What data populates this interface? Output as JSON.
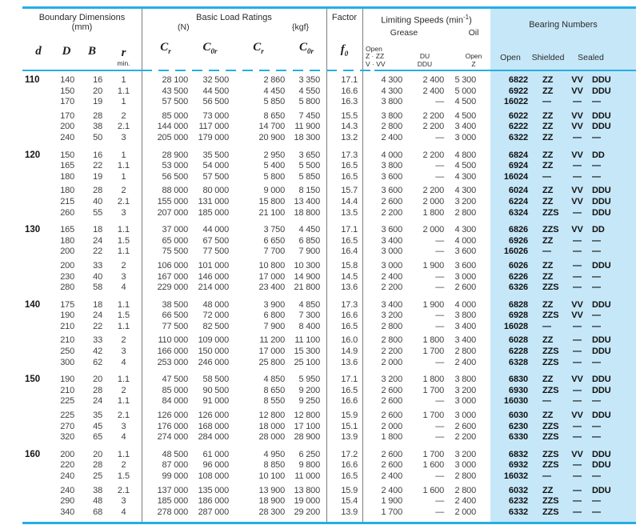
{
  "header": {
    "boundary": {
      "title": "Boundary Dimensions",
      "unit": "(mm)",
      "d": "d",
      "D": "D",
      "B": "B",
      "r": "r",
      "r_sub": "min."
    },
    "load": {
      "title": "Basic Load Ratings",
      "n": "(N)",
      "kgf": "{kgf}",
      "c": "C",
      "sub_r": "r",
      "sub_0r": "0r"
    },
    "factor": {
      "title": "Factor",
      "f": "f",
      "f_sub": "0"
    },
    "speeds": {
      "title_pre": "Limiting Speeds (min",
      "title_sup": "-1",
      "title_post": ")",
      "grease": "Grease",
      "oil": "Oil",
      "grease_col1": [
        "Open",
        "Z · ZZ",
        "V · VV"
      ],
      "grease_col2": [
        "DU",
        "DDU"
      ],
      "oil_col": [
        "Open",
        "Z"
      ]
    },
    "bearing": {
      "title": "Bearing Numbers",
      "open": "Open",
      "shielded": "Shielded",
      "sealed": "Sealed"
    }
  },
  "colors": {
    "accent": "#25aee4",
    "panel": "#c6e7f8"
  },
  "groups": [
    {
      "d": "110",
      "blocks": [
        [
          {
            "D": "140",
            "B": "16",
            "r": "1",
            "crN": "28 100",
            "c0rN": "32 500",
            "crK": "2 860",
            "c0rK": "3 350",
            "f0": "17.1",
            "gro": "4 300",
            "du": "2 400",
            "oil": "5 300",
            "no": "6822",
            "sh": "ZZ",
            "vv": "VV",
            "sl": "DDU"
          },
          {
            "D": "150",
            "B": "20",
            "r": "1.1",
            "crN": "43 500",
            "c0rN": "44 500",
            "crK": "4 450",
            "c0rK": "4 550",
            "f0": "16.6",
            "gro": "4 300",
            "du": "2 400",
            "oil": "5 000",
            "no": "6922",
            "sh": "ZZ",
            "vv": "VV",
            "sl": "DDU"
          },
          {
            "D": "170",
            "B": "19",
            "r": "1",
            "crN": "57 500",
            "c0rN": "56 500",
            "crK": "5 850",
            "c0rK": "5 800",
            "f0": "16.3",
            "gro": "3 800",
            "du": "—",
            "oil": "4 500",
            "no": "16022",
            "sh": "—",
            "vv": "—",
            "sl": "—"
          }
        ],
        [
          {
            "D": "170",
            "B": "28",
            "r": "2",
            "crN": "85 000",
            "c0rN": "73 000",
            "crK": "8 650",
            "c0rK": "7 450",
            "f0": "15.5",
            "gro": "3 800",
            "du": "2 200",
            "oil": "4 500",
            "no": "6022",
            "sh": "ZZ",
            "vv": "VV",
            "sl": "DDU"
          },
          {
            "D": "200",
            "B": "38",
            "r": "2.1",
            "crN": "144 000",
            "c0rN": "117 000",
            "crK": "14 700",
            "c0rK": "11 900",
            "f0": "14.3",
            "gro": "2 800",
            "du": "2 200",
            "oil": "3 400",
            "no": "6222",
            "sh": "ZZ",
            "vv": "VV",
            "sl": "DDU"
          },
          {
            "D": "240",
            "B": "50",
            "r": "3",
            "crN": "205 000",
            "c0rN": "179 000",
            "crK": "20 900",
            "c0rK": "18 300",
            "f0": "13.2",
            "gro": "2 400",
            "du": "—",
            "oil": "3 000",
            "no": "6322",
            "sh": "ZZ",
            "vv": "—",
            "sl": "—"
          }
        ]
      ]
    },
    {
      "d": "120",
      "blocks": [
        [
          {
            "D": "150",
            "B": "16",
            "r": "1",
            "crN": "28 900",
            "c0rN": "35 500",
            "crK": "2 950",
            "c0rK": "3 650",
            "f0": "17.3",
            "gro": "4 000",
            "du": "2 200",
            "oil": "4 800",
            "no": "6824",
            "sh": "ZZ",
            "vv": "VV",
            "sl": "DD"
          },
          {
            "D": "165",
            "B": "22",
            "r": "1.1",
            "crN": "53 000",
            "c0rN": "54 000",
            "crK": "5 400",
            "c0rK": "5 500",
            "f0": "16.5",
            "gro": "3 800",
            "du": "—",
            "oil": "4 500",
            "no": "6924",
            "sh": "ZZ",
            "vv": "—",
            "sl": "—"
          },
          {
            "D": "180",
            "B": "19",
            "r": "1",
            "crN": "56 500",
            "c0rN": "57 500",
            "crK": "5 800",
            "c0rK": "5 850",
            "f0": "16.5",
            "gro": "3 600",
            "du": "—",
            "oil": "4 300",
            "no": "16024",
            "sh": "—",
            "vv": "—",
            "sl": "—"
          }
        ],
        [
          {
            "D": "180",
            "B": "28",
            "r": "2",
            "crN": "88 000",
            "c0rN": "80 000",
            "crK": "9 000",
            "c0rK": "8 150",
            "f0": "15.7",
            "gro": "3 600",
            "du": "2 200",
            "oil": "4 300",
            "no": "6024",
            "sh": "ZZ",
            "vv": "VV",
            "sl": "DDU"
          },
          {
            "D": "215",
            "B": "40",
            "r": "2.1",
            "crN": "155 000",
            "c0rN": "131 000",
            "crK": "15 800",
            "c0rK": "13 400",
            "f0": "14.4",
            "gro": "2 600",
            "du": "2 000",
            "oil": "3 200",
            "no": "6224",
            "sh": "ZZ",
            "vv": "VV",
            "sl": "DDU"
          },
          {
            "D": "260",
            "B": "55",
            "r": "3",
            "crN": "207 000",
            "c0rN": "185 000",
            "crK": "21 100",
            "c0rK": "18 800",
            "f0": "13.5",
            "gro": "2 200",
            "du": "1 800",
            "oil": "2 800",
            "no": "6324",
            "sh": "ZZS",
            "vv": "—",
            "sl": "DDU"
          }
        ]
      ]
    },
    {
      "d": "130",
      "blocks": [
        [
          {
            "D": "165",
            "B": "18",
            "r": "1.1",
            "crN": "37 000",
            "c0rN": "44 000",
            "crK": "3 750",
            "c0rK": "4 450",
            "f0": "17.1",
            "gro": "3 600",
            "du": "2 000",
            "oil": "4 300",
            "no": "6826",
            "sh": "ZZS",
            "vv": "VV",
            "sl": "DD"
          },
          {
            "D": "180",
            "B": "24",
            "r": "1.5",
            "crN": "65 000",
            "c0rN": "67 500",
            "crK": "6 650",
            "c0rK": "6 850",
            "f0": "16.5",
            "gro": "3 400",
            "du": "—",
            "oil": "4 000",
            "no": "6926",
            "sh": "ZZ",
            "vv": "—",
            "sl": "—"
          },
          {
            "D": "200",
            "B": "22",
            "r": "1.1",
            "crN": "75 500",
            "c0rN": "77 500",
            "crK": "7 700",
            "c0rK": "7 900",
            "f0": "16.4",
            "gro": "3 000",
            "du": "—",
            "oil": "3 600",
            "no": "16026",
            "sh": "—",
            "vv": "—",
            "sl": "—"
          }
        ],
        [
          {
            "D": "200",
            "B": "33",
            "r": "2",
            "crN": "106 000",
            "c0rN": "101 000",
            "crK": "10 800",
            "c0rK": "10 300",
            "f0": "15.8",
            "gro": "3 000",
            "du": "1 900",
            "oil": "3 600",
            "no": "6026",
            "sh": "ZZ",
            "vv": "—",
            "sl": "DDU"
          },
          {
            "D": "230",
            "B": "40",
            "r": "3",
            "crN": "167 000",
            "c0rN": "146 000",
            "crK": "17 000",
            "c0rK": "14 900",
            "f0": "14.5",
            "gro": "2 400",
            "du": "—",
            "oil": "3 000",
            "no": "6226",
            "sh": "ZZ",
            "vv": "—",
            "sl": "—"
          },
          {
            "D": "280",
            "B": "58",
            "r": "4",
            "crN": "229 000",
            "c0rN": "214 000",
            "crK": "23 400",
            "c0rK": "21 800",
            "f0": "13.6",
            "gro": "2 200",
            "du": "—",
            "oil": "2 600",
            "no": "6326",
            "sh": "ZZS",
            "vv": "—",
            "sl": "—"
          }
        ]
      ]
    },
    {
      "d": "140",
      "blocks": [
        [
          {
            "D": "175",
            "B": "18",
            "r": "1.1",
            "crN": "38 500",
            "c0rN": "48 000",
            "crK": "3 900",
            "c0rK": "4 850",
            "f0": "17.3",
            "gro": "3 400",
            "du": "1 900",
            "oil": "4 000",
            "no": "6828",
            "sh": "ZZ",
            "vv": "VV",
            "sl": "DDU"
          },
          {
            "D": "190",
            "B": "24",
            "r": "1.5",
            "crN": "66 500",
            "c0rN": "72 000",
            "crK": "6 800",
            "c0rK": "7 300",
            "f0": "16.6",
            "gro": "3 200",
            "du": "—",
            "oil": "3 800",
            "no": "6928",
            "sh": "ZZS",
            "vv": "VV",
            "sl": "—"
          },
          {
            "D": "210",
            "B": "22",
            "r": "1.1",
            "crN": "77 500",
            "c0rN": "82 500",
            "crK": "7 900",
            "c0rK": "8 400",
            "f0": "16.5",
            "gro": "2 800",
            "du": "—",
            "oil": "3 400",
            "no": "16028",
            "sh": "—",
            "vv": "—",
            "sl": "—"
          }
        ],
        [
          {
            "D": "210",
            "B": "33",
            "r": "2",
            "crN": "110 000",
            "c0rN": "109 000",
            "crK": "11 200",
            "c0rK": "11 100",
            "f0": "16.0",
            "gro": "2 800",
            "du": "1 800",
            "oil": "3 400",
            "no": "6028",
            "sh": "ZZ",
            "vv": "—",
            "sl": "DDU"
          },
          {
            "D": "250",
            "B": "42",
            "r": "3",
            "crN": "166 000",
            "c0rN": "150 000",
            "crK": "17 000",
            "c0rK": "15 300",
            "f0": "14.9",
            "gro": "2 200",
            "du": "1 700",
            "oil": "2 800",
            "no": "6228",
            "sh": "ZZS",
            "vv": "—",
            "sl": "DDU"
          },
          {
            "D": "300",
            "B": "62",
            "r": "4",
            "crN": "253 000",
            "c0rN": "246 000",
            "crK": "25 800",
            "c0rK": "25 100",
            "f0": "13.6",
            "gro": "2 000",
            "du": "—",
            "oil": "2 400",
            "no": "6328",
            "sh": "ZZS",
            "vv": "—",
            "sl": "—"
          }
        ]
      ]
    },
    {
      "d": "150",
      "blocks": [
        [
          {
            "D": "190",
            "B": "20",
            "r": "1.1",
            "crN": "47 500",
            "c0rN": "58 500",
            "crK": "4 850",
            "c0rK": "5 950",
            "f0": "17.1",
            "gro": "3 200",
            "du": "1 800",
            "oil": "3 800",
            "no": "6830",
            "sh": "ZZ",
            "vv": "VV",
            "sl": "DDU"
          },
          {
            "D": "210",
            "B": "28",
            "r": "2",
            "crN": "85 000",
            "c0rN": "90 500",
            "crK": "8 650",
            "c0rK": "9 200",
            "f0": "16.5",
            "gro": "2 600",
            "du": "1 700",
            "oil": "3 200",
            "no": "6930",
            "sh": "ZZS",
            "vv": "—",
            "sl": "DDU"
          },
          {
            "D": "225",
            "B": "24",
            "r": "1.1",
            "crN": "84 000",
            "c0rN": "91 000",
            "crK": "8 550",
            "c0rK": "9 250",
            "f0": "16.6",
            "gro": "2 600",
            "du": "—",
            "oil": "3 000",
            "no": "16030",
            "sh": "—",
            "vv": "—",
            "sl": "—"
          }
        ],
        [
          {
            "D": "225",
            "B": "35",
            "r": "2.1",
            "crN": "126 000",
            "c0rN": "126 000",
            "crK": "12 800",
            "c0rK": "12 800",
            "f0": "15.9",
            "gro": "2 600",
            "du": "1 700",
            "oil": "3 000",
            "no": "6030",
            "sh": "ZZ",
            "vv": "VV",
            "sl": "DDU"
          },
          {
            "D": "270",
            "B": "45",
            "r": "3",
            "crN": "176 000",
            "c0rN": "168 000",
            "crK": "18 000",
            "c0rK": "17 100",
            "f0": "15.1",
            "gro": "2 000",
            "du": "—",
            "oil": "2 600",
            "no": "6230",
            "sh": "ZZS",
            "vv": "—",
            "sl": "—"
          },
          {
            "D": "320",
            "B": "65",
            "r": "4",
            "crN": "274 000",
            "c0rN": "284 000",
            "crK": "28 000",
            "c0rK": "28 900",
            "f0": "13.9",
            "gro": "1 800",
            "du": "—",
            "oil": "2 200",
            "no": "6330",
            "sh": "ZZS",
            "vv": "—",
            "sl": "—"
          }
        ]
      ]
    },
    {
      "d": "160",
      "blocks": [
        [
          {
            "D": "200",
            "B": "20",
            "r": "1.1",
            "crN": "48 500",
            "c0rN": "61 000",
            "crK": "4 950",
            "c0rK": "6 250",
            "f0": "17.2",
            "gro": "2 600",
            "du": "1 700",
            "oil": "3 200",
            "no": "6832",
            "sh": "ZZS",
            "vv": "VV",
            "sl": "DDU"
          },
          {
            "D": "220",
            "B": "28",
            "r": "2",
            "crN": "87 000",
            "c0rN": "96 000",
            "crK": "8 850",
            "c0rK": "9 800",
            "f0": "16.6",
            "gro": "2 600",
            "du": "1 600",
            "oil": "3 000",
            "no": "6932",
            "sh": "ZZS",
            "vv": "—",
            "sl": "DDU"
          },
          {
            "D": "240",
            "B": "25",
            "r": "1.5",
            "crN": "99 000",
            "c0rN": "108 000",
            "crK": "10 100",
            "c0rK": "11 000",
            "f0": "16.5",
            "gro": "2 400",
            "du": "—",
            "oil": "2 800",
            "no": "16032",
            "sh": "—",
            "vv": "—",
            "sl": "—"
          }
        ],
        [
          {
            "D": "240",
            "B": "38",
            "r": "2.1",
            "crN": "137 000",
            "c0rN": "135 000",
            "crK": "13 900",
            "c0rK": "13 800",
            "f0": "15.9",
            "gro": "2 400",
            "du": "1 600",
            "oil": "2 800",
            "no": "6032",
            "sh": "ZZ",
            "vv": "—",
            "sl": "DDU"
          },
          {
            "D": "290",
            "B": "48",
            "r": "3",
            "crN": "185 000",
            "c0rN": "186 000",
            "crK": "18 900",
            "c0rK": "19 000",
            "f0": "15.4",
            "gro": "1 900",
            "du": "—",
            "oil": "2 400",
            "no": "6232",
            "sh": "ZZS",
            "vv": "—",
            "sl": "—"
          },
          {
            "D": "340",
            "B": "68",
            "r": "4",
            "crN": "278 000",
            "c0rN": "287 000",
            "crK": "28 300",
            "c0rK": "29 200",
            "f0": "13.9",
            "gro": "1 700",
            "du": "—",
            "oil": "2 000",
            "no": "6332",
            "sh": "ZZS",
            "vv": "—",
            "sl": "—"
          }
        ]
      ]
    }
  ]
}
